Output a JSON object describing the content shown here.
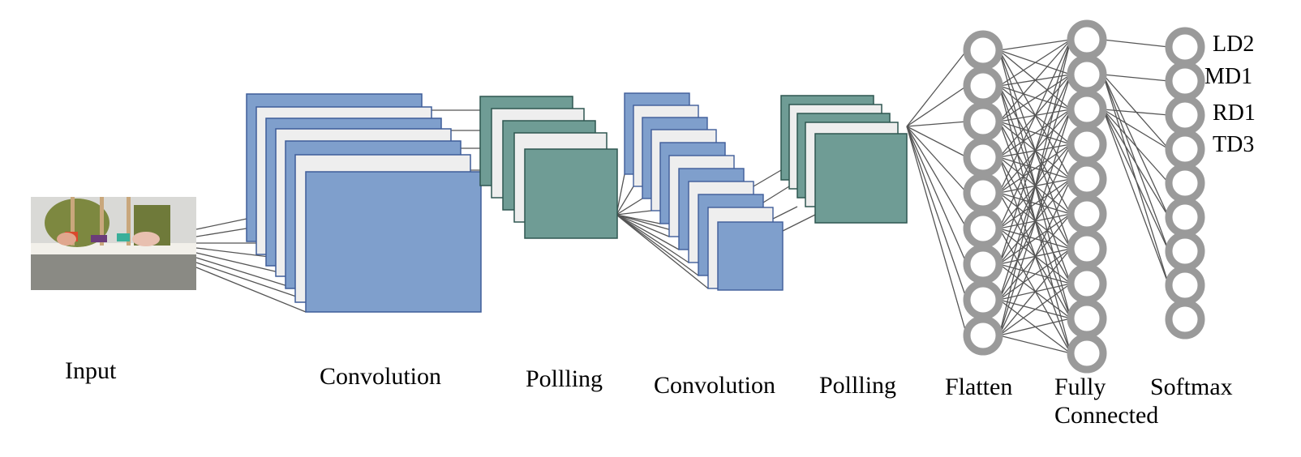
{
  "colors": {
    "conv_fill": "#7f9fcc",
    "conv_stroke": "#3f5d99",
    "pool_fill": "#6f9c95",
    "pool_stroke": "#2f5750",
    "light_sheet": "#eeeeee",
    "neuron_stroke": "#9a9a9a",
    "edge": "#555555"
  },
  "labels": {
    "input": "Input",
    "conv1": "Convolution",
    "pool1": "Pollling",
    "conv2": "Convolution",
    "pool2": "Pollling",
    "flatten": "Flatten",
    "fully_line1": "Fully",
    "fully_line2": "Connected",
    "softmax": "Softmax"
  },
  "outputs": [
    "LD2",
    "MD1",
    "RD1",
    "TD3"
  ],
  "layers": {
    "flatten_neurons": 9,
    "fully_connected_neurons": 10,
    "softmax_neurons": 9
  },
  "input_image": "photo-of-hands-and-stacking-toy"
}
